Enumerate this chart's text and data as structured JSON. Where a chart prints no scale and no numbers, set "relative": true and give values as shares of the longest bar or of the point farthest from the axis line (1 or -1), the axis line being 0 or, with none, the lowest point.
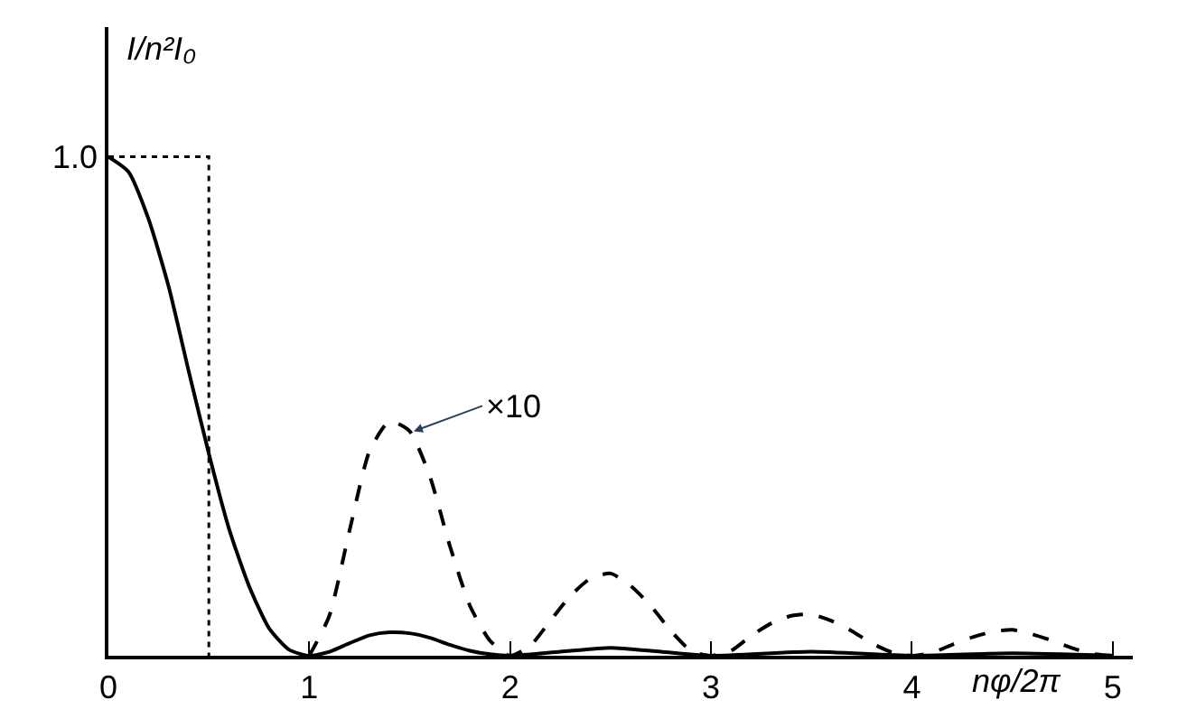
{
  "chart_data": {
    "type": "line",
    "xlabel": "nφ/2π",
    "ylabel": "I/n²I₀",
    "xlim": [
      0,
      5.1
    ],
    "xticks": [
      0,
      1,
      2,
      3,
      4,
      5
    ],
    "relative": true,
    "marker": "none",
    "series": [
      {
        "color": "#000000",
        "line_style": "solid",
        "x": [
          0,
          0.1,
          0.2,
          0.3,
          0.4,
          0.5,
          0.6,
          0.7,
          0.8,
          0.9,
          1.0,
          1.1,
          1.2,
          1.3,
          1.4,
          1.5,
          1.6,
          1.7,
          1.8,
          1.9,
          2.0,
          2.25,
          2.5,
          2.75,
          3.0,
          3.5,
          4.0,
          4.5,
          5.0
        ],
        "values": [
          1.0,
          0.97,
          0.875,
          0.74,
          0.57,
          0.405,
          0.255,
          0.14,
          0.055,
          0.012,
          0,
          0.008,
          0.025,
          0.041,
          0.047,
          0.045,
          0.036,
          0.022,
          0.01,
          0.003,
          0,
          0.008,
          0.016,
          0.008,
          0,
          0.008,
          0,
          0.005,
          0
        ]
      },
      {
        "color": "#000000",
        "line_style": "dashed",
        "x": [
          1.0,
          1.1,
          1.2,
          1.3,
          1.4,
          1.5,
          1.6,
          1.7,
          1.8,
          1.9,
          2.0,
          2.1,
          2.2,
          2.3,
          2.4,
          2.5,
          2.6,
          2.7,
          2.8,
          2.9,
          3.0,
          3.1,
          3.2,
          3.3,
          3.4,
          3.5,
          3.6,
          3.7,
          3.8,
          3.9,
          4.0,
          4.1,
          4.2,
          4.3,
          4.4,
          4.5,
          4.6,
          4.7,
          4.8,
          4.9,
          5.0
        ],
        "values": [
          0,
          0.08,
          0.25,
          0.41,
          0.47,
          0.45,
          0.36,
          0.22,
          0.1,
          0.03,
          0,
          0.02,
          0.07,
          0.12,
          0.155,
          0.165,
          0.14,
          0.1,
          0.05,
          0.01,
          0,
          0.01,
          0.04,
          0.065,
          0.08,
          0.083,
          0.07,
          0.05,
          0.025,
          0.007,
          0,
          0.006,
          0.022,
          0.037,
          0.048,
          0.052,
          0.043,
          0.03,
          0.015,
          0.004,
          0
        ]
      },
      {
        "color": "#000000",
        "line_style": "dotted",
        "x": [
          0,
          0.5,
          0.5
        ],
        "values": [
          1.0,
          1.0,
          0
        ]
      }
    ],
    "annotations": [
      {
        "text": "×10",
        "x": 1.52,
        "y": 0.45
      },
      {
        "text": "1.0",
        "x": 0,
        "y": 1.0
      }
    ]
  }
}
